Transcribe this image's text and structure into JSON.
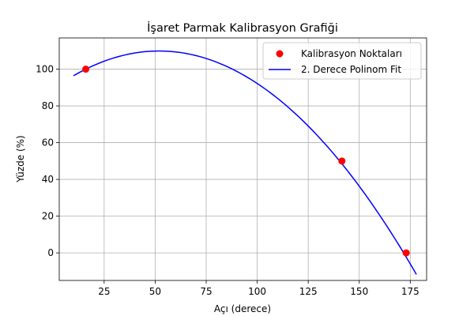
{
  "chart_data": {
    "type": "scatter",
    "title": "İşaret Parmak Kalibrasyon Grafiği",
    "xlabel": "Açı (derece)",
    "ylabel": "Yüzde (%)",
    "xlim": [
      3,
      183
    ],
    "ylim": [
      -15,
      117
    ],
    "xticks": [
      25,
      50,
      75,
      100,
      125,
      150,
      175
    ],
    "yticks": [
      0,
      20,
      40,
      60,
      80,
      100
    ],
    "grid": true,
    "legend_position": "top-right",
    "series": [
      {
        "name": "Kalibrasyon Noktaları",
        "kind": "scatter",
        "color": "#ff0000",
        "points": [
          {
            "x": 16,
            "y": 100
          },
          {
            "x": 141.5,
            "y": 50
          },
          {
            "x": 173,
            "y": 0
          }
        ]
      },
      {
        "name": "2. Derece Polinom Fit",
        "kind": "line",
        "color": "#0000ff",
        "polynomial_coefficients": {
          "a": -0.0076525,
          "b": 0.7949305,
          "c": 89.2360015
        },
        "x_range": [
          10,
          178
        ]
      }
    ]
  }
}
